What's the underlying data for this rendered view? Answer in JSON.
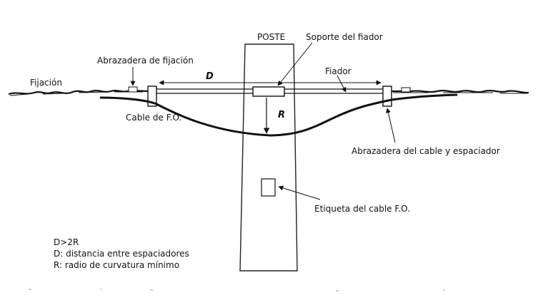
{
  "labels": {
    "poste": "POSTE",
    "soporte_fiador": "Soporte del fiador",
    "abrazadera_fijacion": "Abrazadera de fijación",
    "fijacion": "Fijación",
    "fiador": "Fiador",
    "cable_fo": "Cable de F.O.",
    "abrazadera_cable": "Abrazadera del cable y espaciador",
    "etiqueta": "Etiqueta del cable F.O."
  },
  "dimensions": {
    "d": "D",
    "r": "R"
  },
  "legend": {
    "line1": "D>2R",
    "line2": "D: distancia entre espaciadores",
    "line3": "R: radio de curvatura mínimo"
  },
  "colors": {
    "ink": "#111111",
    "background": "#ffffff"
  }
}
